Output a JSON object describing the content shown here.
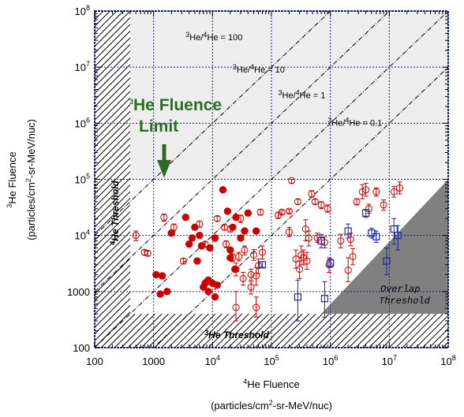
{
  "chart_data": {
    "type": "scatter",
    "xlabel_line1": "He Fluence",
    "xlabel_sup": "4",
    "xlabel_line2": "(particles/cm",
    "xlabel_line2_sup": "2",
    "xlabel_line2_end": "-sr-MeV/nuc)",
    "ylabel_line1": "He Fluence",
    "ylabel_sup": "3",
    "ylabel_line2": "(particles/cm",
    "ylabel_line2_sup": "2",
    "ylabel_line2_end": "-sr-MeV/nuc)",
    "x_scale": "log",
    "y_scale": "log",
    "xlim": [
      100,
      100000000
    ],
    "ylim": [
      100,
      100000000
    ],
    "x_ticks": [
      {
        "base": "100",
        "exp": ""
      },
      {
        "base": "1000",
        "exp": ""
      },
      {
        "base": "10",
        "exp": "4"
      },
      {
        "base": "10",
        "exp": "5"
      },
      {
        "base": "10",
        "exp": "6"
      },
      {
        "base": "10",
        "exp": "7"
      },
      {
        "base": "10",
        "exp": "8"
      }
    ],
    "y_ticks": [
      {
        "base": "100",
        "exp": ""
      },
      {
        "base": "1000",
        "exp": ""
      },
      {
        "base": "10",
        "exp": "4"
      },
      {
        "base": "10",
        "exp": "5"
      },
      {
        "base": "10",
        "exp": "6"
      },
      {
        "base": "10",
        "exp": "7"
      },
      {
        "base": "10",
        "exp": "8"
      }
    ],
    "ratio_lines": [
      {
        "value": 100,
        "label": "He/ He = 100",
        "num": "3",
        "den": "4",
        "label_x": 3500,
        "label_y": 30000000
      },
      {
        "value": 10,
        "label": "He/ He = 10",
        "num": "3",
        "den": "4",
        "label_x": 22000,
        "label_y": 8000000
      },
      {
        "value": 1,
        "label": "He/ He = 1",
        "num": "3",
        "den": "4",
        "label_x": 130000,
        "label_y": 2800000
      },
      {
        "value": 0.1,
        "label": "He/ He = 0.1",
        "num": "3",
        "den": "4",
        "label_x": 900000,
        "label_y": 900000
      }
    ],
    "limit_label": {
      "sup": "3",
      "line1": "He Fluence",
      "line2": "Limit"
    },
    "he3_limit": 100000,
    "he4_threshold": 400,
    "he3_threshold": 400,
    "threshold_labels": {
      "he4": {
        "sup": "4",
        "text": "He Threshold"
      },
      "he3": {
        "sup": "3",
        "text": "He Threshold"
      }
    },
    "overlap_label": [
      "Overlap",
      "Threshold"
    ],
    "series": [
      {
        "marker": "filled-circle",
        "color": "#cc0000",
        "points": [
          [
            1100,
            2000
          ],
          [
            1300,
            900
          ],
          [
            1400,
            1900
          ],
          [
            1700,
            1000
          ],
          [
            2000,
            11000
          ],
          [
            3500,
            21000
          ],
          [
            4000,
            7000
          ],
          [
            4500,
            9000
          ],
          [
            5000,
            14000
          ],
          [
            5500,
            3500
          ],
          [
            6000,
            10000
          ],
          [
            6500,
            6500
          ],
          [
            7000,
            1200
          ],
          [
            7500,
            1400
          ],
          [
            8000,
            1500
          ],
          [
            8500,
            1000
          ],
          [
            8500,
            1600
          ],
          [
            9000,
            6000
          ],
          [
            10000,
            1400
          ],
          [
            11000,
            9000
          ],
          [
            12000,
            1300
          ],
          [
            15000,
            65000
          ],
          [
            18000,
            27000
          ],
          [
            20000,
            4000
          ],
          [
            20000,
            5500
          ],
          [
            22000,
            14000
          ],
          [
            24000,
            2500
          ],
          [
            25000,
            21000
          ],
          [
            30000,
            9000
          ],
          [
            35000,
            12000
          ],
          [
            40000,
            25000
          ],
          [
            55000,
            12000
          ],
          [
            11000,
            800
          ]
        ]
      },
      {
        "marker": "open-circle-errorbar",
        "color": "#cc0000",
        "points": [
          [
            500,
            10000,
            8000,
            12000
          ],
          [
            700,
            5000,
            4500,
            5500
          ],
          [
            800,
            4800,
            4300,
            5300
          ],
          [
            1500,
            21000,
            18000,
            24000
          ],
          [
            2200,
            14000,
            12000,
            16000
          ],
          [
            3200,
            3500,
            3100,
            3900
          ],
          [
            6000,
            16000,
            14000,
            18000
          ],
          [
            7500,
            7000,
            6300,
            7700
          ],
          [
            12000,
            20000,
            18000,
            22000
          ],
          [
            16000,
            14000,
            12500,
            15500
          ],
          [
            17000,
            7000,
            6000,
            8000
          ],
          [
            20000,
            13000,
            11500,
            14500
          ],
          [
            22000,
            4000,
            3400,
            4700
          ],
          [
            25000,
            2500,
            1900,
            3200
          ],
          [
            28000,
            4200,
            3500,
            5000
          ],
          [
            30000,
            20000,
            17000,
            23000
          ],
          [
            33000,
            1700,
            1300,
            2200
          ],
          [
            35000,
            5500,
            4500,
            6500
          ],
          [
            45000,
            1200,
            900,
            1500
          ],
          [
            50000,
            4500,
            3600,
            5600
          ],
          [
            55000,
            1900,
            1300,
            2700
          ],
          [
            60000,
            2900,
            2100,
            3800
          ],
          [
            65000,
            26000,
            23000,
            29000
          ],
          [
            70000,
            5000,
            3800,
            6500
          ],
          [
            25000,
            520,
            300,
            1000
          ],
          [
            55000,
            520,
            350,
            800
          ],
          [
            45000,
            2000,
            1600,
            2500
          ],
          [
            150000,
            26000,
            24000,
            28000
          ],
          [
            200000,
            27000,
            25000,
            29000
          ],
          [
            220000,
            95000,
            85000,
            100000
          ],
          [
            280000,
            40000,
            36000,
            44000
          ],
          [
            300000,
            2500,
            1700,
            3500
          ],
          [
            320000,
            4500,
            3000,
            6500
          ],
          [
            350000,
            4000,
            3000,
            5500
          ],
          [
            380000,
            13000,
            8000,
            19000
          ],
          [
            400000,
            3500,
            2500,
            5000
          ],
          [
            430000,
            9000,
            6500,
            12000
          ],
          [
            480000,
            55000,
            48000,
            63000
          ],
          [
            550000,
            40000,
            36000,
            44000
          ],
          [
            600000,
            9000,
            7500,
            11000
          ],
          [
            700000,
            35000,
            30000,
            40000
          ],
          [
            800000,
            7500,
            6000,
            9500
          ],
          [
            900000,
            30000,
            26000,
            35000
          ],
          [
            950000,
            3000,
            2200,
            4000
          ],
          [
            1500000,
            8000,
            6000,
            10500
          ],
          [
            2200000,
            8500,
            6500,
            11000
          ],
          [
            2800000,
            40000,
            35000,
            45000
          ],
          [
            3500000,
            60000,
            45000,
            80000
          ],
          [
            4000000,
            65000,
            50000,
            85000
          ],
          [
            6000000,
            60000,
            50000,
            70000
          ],
          [
            8000000,
            35000,
            28000,
            43000
          ],
          [
            12000000,
            60000,
            48000,
            75000
          ],
          [
            15000000,
            70000,
            55000,
            90000
          ],
          [
            4500000,
            30000,
            25000,
            36000
          ],
          [
            2000000,
            2400,
            1500,
            4000
          ],
          [
            2400000,
            4200,
            3000,
            5800
          ],
          [
            200000,
            11500,
            9500,
            14000
          ],
          [
            130000,
            23000,
            20000,
            26000
          ],
          [
            260000,
            3800,
            2600,
            5500
          ]
        ]
      },
      {
        "marker": "open-square-errorbar",
        "color": "#1a2a9c",
        "points": [
          [
            70000,
            3000,
            2700,
            3400
          ],
          [
            280000,
            800,
            300,
            1600
          ],
          [
            700000,
            8000,
            6000,
            10500
          ],
          [
            800000,
            750,
            350,
            1500
          ],
          [
            1000000,
            3200,
            2700,
            3800
          ],
          [
            4000000,
            25000,
            21000,
            29000
          ],
          [
            5000000,
            11000,
            9000,
            13500
          ],
          [
            6000000,
            9500,
            7500,
            12000
          ],
          [
            9000000,
            3500,
            2000,
            6000
          ],
          [
            12000000,
            13000,
            7000,
            20000
          ],
          [
            14000000,
            10000,
            5500,
            15000
          ],
          [
            2000000,
            12000,
            9000,
            16000
          ]
        ]
      }
    ]
  }
}
